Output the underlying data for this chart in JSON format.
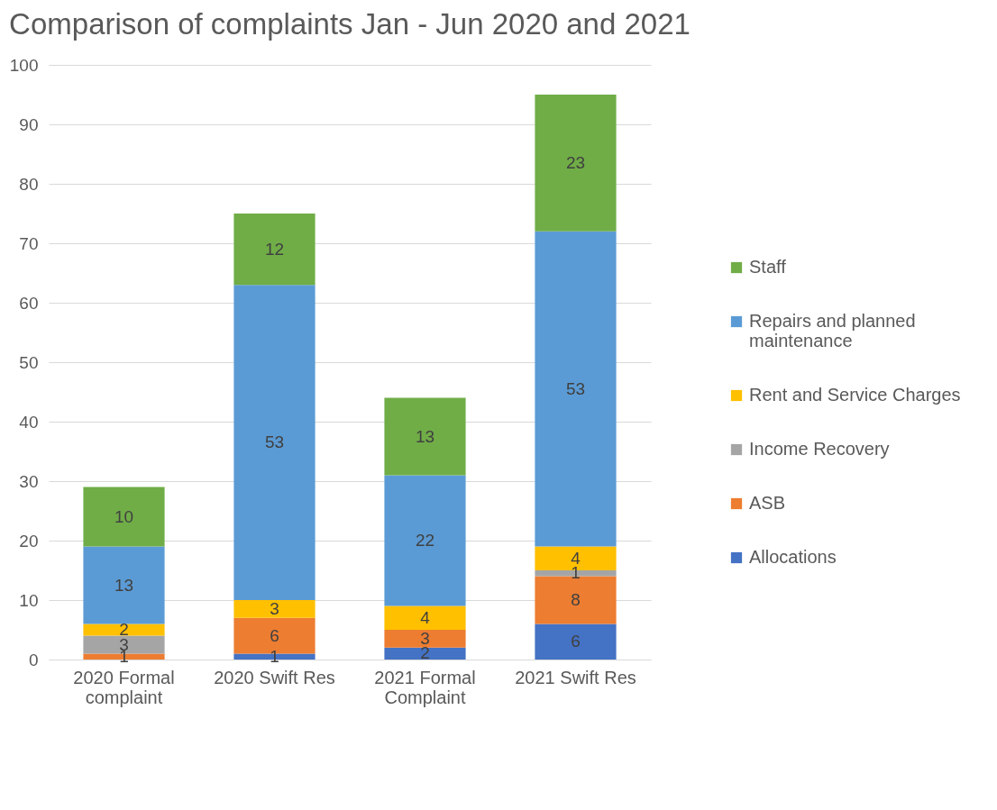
{
  "chart_data": {
    "type": "bar",
    "title": "Comparison of complaints Jan - Jun 2020 and 2021",
    "stacked": true,
    "data_labels": true,
    "grid": "y",
    "legend": "right",
    "categories": [
      "2020 Formal complaint",
      "2020 Swift Res",
      "2021 Formal Complaint",
      "2021 Swift Res"
    ],
    "ylim": [
      0,
      100
    ],
    "yticks": [
      0,
      10,
      20,
      30,
      40,
      50,
      60,
      70,
      80,
      90,
      100
    ],
    "series": [
      {
        "name": "Allocations",
        "color": "#4472c4",
        "values": [
          null,
          1,
          2,
          6
        ]
      },
      {
        "name": "ASB",
        "color": "#ed7d31",
        "values": [
          1,
          6,
          3,
          8
        ]
      },
      {
        "name": "Income Recovery",
        "color": "#a5a5a5",
        "values": [
          3,
          null,
          null,
          1
        ]
      },
      {
        "name": "Rent and Service Charges",
        "color": "#ffc000",
        "values": [
          2,
          3,
          4,
          4
        ]
      },
      {
        "name": "Repairs and planned maintenance",
        "color": "#5b9bd5",
        "values": [
          13,
          53,
          22,
          53
        ]
      },
      {
        "name": "Staff",
        "color": "#70ad47",
        "values": [
          10,
          12,
          13,
          23
        ]
      }
    ]
  }
}
